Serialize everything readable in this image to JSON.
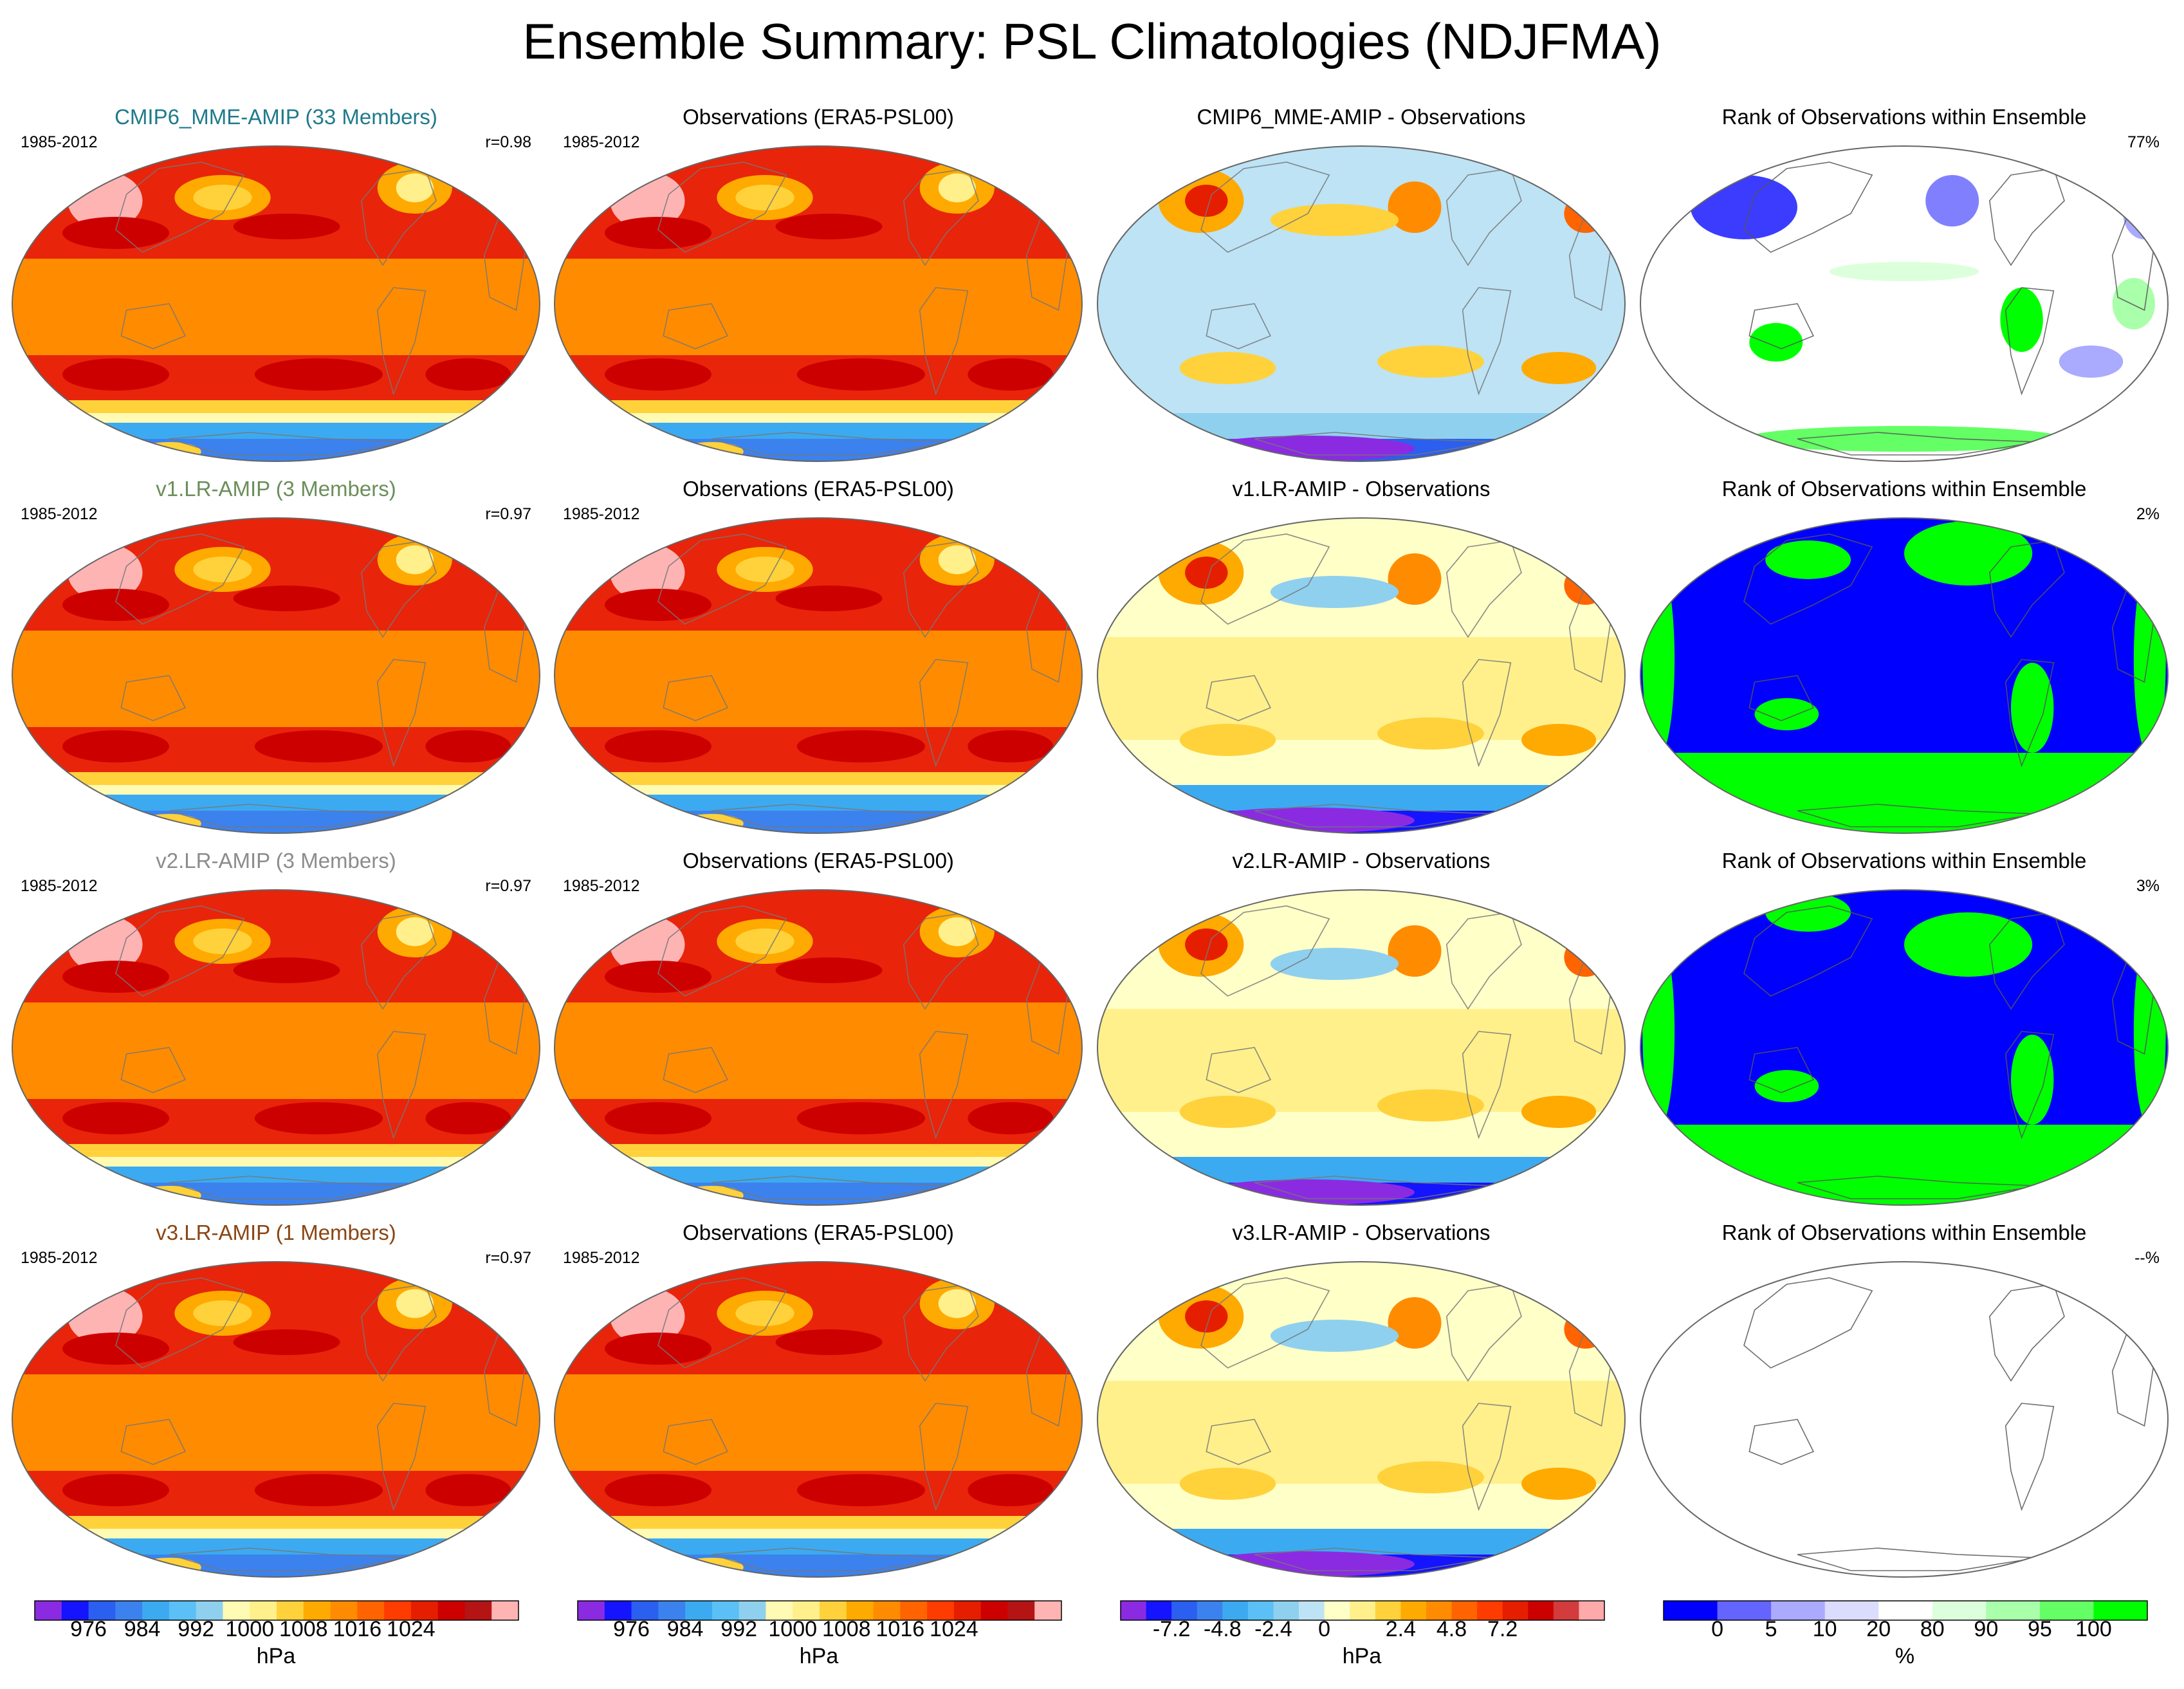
{
  "title": "Ensemble Summary: PSL Climatologies (NDJFMA)",
  "colors": {
    "model_title_1": "#1f7a8c",
    "model_title_2": "#6b8e5a",
    "model_title_3": "#8c8c8c",
    "model_title_4": "#8b4513"
  },
  "rows": [
    {
      "model": {
        "title": "CMIP6_MME-AMIP (33 Members)",
        "period": "1985-2012",
        "corr": "r=0.98"
      },
      "obs": {
        "title": "Observations (ERA5-PSL00)",
        "period": "1985-2012"
      },
      "diff": {
        "title": "CMIP6_MME-AMIP - Observations"
      },
      "rank": {
        "title": "Rank of Observations within Ensemble",
        "pct": "77%"
      }
    },
    {
      "model": {
        "title": "v1.LR-AMIP (3 Members)",
        "period": "1985-2012",
        "corr": "r=0.97"
      },
      "obs": {
        "title": "Observations (ERA5-PSL00)",
        "period": "1985-2012"
      },
      "diff": {
        "title": "v1.LR-AMIP - Observations"
      },
      "rank": {
        "title": "Rank of Observations within Ensemble",
        "pct": "2%"
      }
    },
    {
      "model": {
        "title": "v2.LR-AMIP (3 Members)",
        "period": "1985-2012",
        "corr": "r=0.97"
      },
      "obs": {
        "title": "Observations (ERA5-PSL00)",
        "period": "1985-2012"
      },
      "diff": {
        "title": "v2.LR-AMIP - Observations"
      },
      "rank": {
        "title": "Rank of Observations within Ensemble",
        "pct": "3%"
      }
    },
    {
      "model": {
        "title": "v3.LR-AMIP (1 Members)",
        "period": "1985-2012",
        "corr": "r=0.97"
      },
      "obs": {
        "title": "Observations (ERA5-PSL00)",
        "period": "1985-2012"
      },
      "diff": {
        "title": "v3.LR-AMIP - Observations"
      },
      "rank": {
        "title": "Rank of Observations within Ensemble",
        "pct": "--%"
      }
    }
  ],
  "colorbars": {
    "clim": {
      "unit": "hPa",
      "ticks": [
        "976",
        "984",
        "992",
        "1000",
        "1008",
        "1016",
        "1024"
      ],
      "colors": [
        "#8a2be2",
        "#1414ff",
        "#2a5ff0",
        "#3c82ee",
        "#3caaf0",
        "#5ac0f5",
        "#8fd0ef",
        "#fffbb4",
        "#fff08c",
        "#ffd23c",
        "#ffaa00",
        "#ff8c00",
        "#ff6400",
        "#ff3c00",
        "#e61e00",
        "#cd0000",
        "#b41414",
        "#ffb4b4"
      ]
    },
    "diff": {
      "unit": "hPa",
      "ticks": [
        "-7.2",
        "-4.8",
        "-2.4",
        "0",
        "2.4",
        "4.8",
        "7.2"
      ],
      "colors": [
        "#8a2be2",
        "#1414ff",
        "#2a5ff0",
        "#3c82ee",
        "#3caaf0",
        "#5ac0f5",
        "#8fd0ef",
        "#bde3f5",
        "#ffffc8",
        "#fff08c",
        "#ffd23c",
        "#ffaa00",
        "#ff8c00",
        "#ff6400",
        "#ff3c00",
        "#e61e00",
        "#cd0000",
        "#d23c3c",
        "#ffaaaa"
      ]
    },
    "rank": {
      "unit": "%",
      "ticks": [
        "0",
        "5",
        "10",
        "20",
        "80",
        "90",
        "95",
        "100"
      ],
      "colors": [
        "#0000ff",
        "#6464ff",
        "#aaaaff",
        "#dcdcff",
        "#ffffff",
        "#dcffdc",
        "#aaffaa",
        "#64ff64",
        "#00ff00"
      ]
    }
  }
}
